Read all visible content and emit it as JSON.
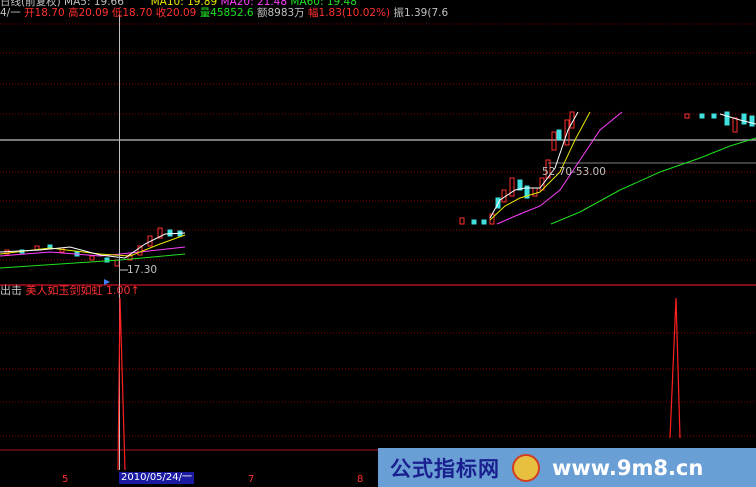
{
  "header": {
    "period": "日线(前复权)",
    "ma5": "MA5: 19.66",
    "ma10": "MA10: 19.89",
    "ma20": "MA20: 21.48",
    "ma60": "MA60: 19.48",
    "weekday": "4/一",
    "open": "开18.70",
    "high": "高20.09",
    "low": "低18.70",
    "close": "收20.09",
    "volume": "量45852.6",
    "amount": "额8983万",
    "change": "幅1.83(10.02%)",
    "amplitude": "振1.39(7.6"
  },
  "price_annotations": {
    "range": "52.70-53.00",
    "low_marker": "17.30"
  },
  "indicator": {
    "name": "出击",
    "series_label": "美人如玉剑如虹",
    "value": "1.00↑"
  },
  "x_axis": {
    "ticks": [
      "5",
      "7",
      "8"
    ],
    "cursor_date": "2010/05/24/一"
  },
  "watermark": {
    "site_name": "公式指标网",
    "url": "www.9m8.cn"
  },
  "colors": {
    "up": "#ff3030",
    "down": "#40e0e0",
    "ma5": "#ffffff",
    "ma10": "#e8e800",
    "ma20": "#ff40ff",
    "ma60": "#20e020",
    "grid": "#8b0000"
  },
  "chart_data": {
    "type": "candlestick",
    "title": "",
    "series": [
      {
        "name": "MA5",
        "values": [
          19.66
        ]
      },
      {
        "name": "MA10",
        "values": [
          19.89
        ]
      },
      {
        "name": "MA20",
        "values": [
          21.48
        ]
      },
      {
        "name": "MA60",
        "values": [
          19.48
        ]
      }
    ],
    "cursor_bar": {
      "date": "2010/05/24",
      "open": 18.7,
      "high": 20.09,
      "low": 18.7,
      "close": 20.09
    },
    "indicator_signals": {
      "name": "美人如玉剑如虹",
      "value": 1.0
    },
    "xlabel": "",
    "ylabel": "",
    "grid": true
  }
}
